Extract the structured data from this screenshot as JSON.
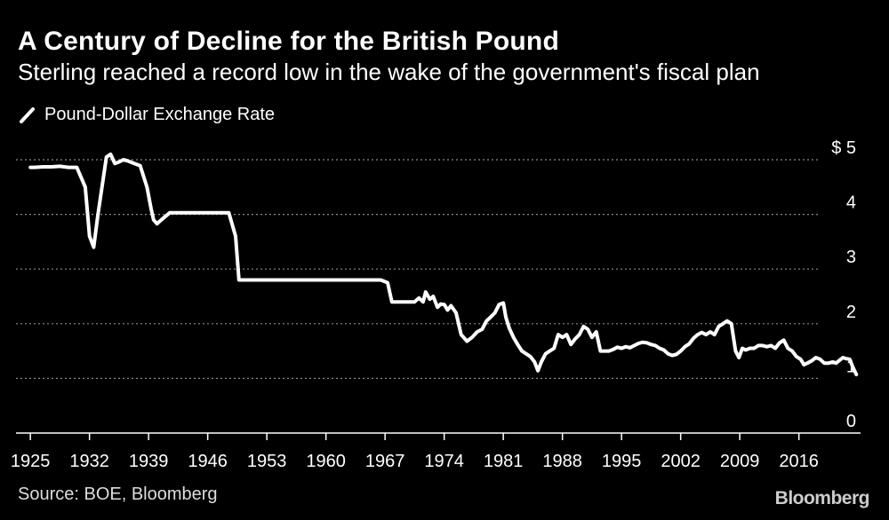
{
  "chart_data": {
    "type": "line",
    "title": "A Century of Decline for the British Pound",
    "subtitle": "Sterling reached a record low in the wake of the government's fiscal plan",
    "legend": [
      "Pound-Dollar Exchange Rate"
    ],
    "xlabel": "",
    "ylabel": "",
    "xlim": [
      1923.3,
      2023.3
    ],
    "ylim": [
      0,
      5
    ],
    "x_ticks": [
      1925,
      1932,
      1939,
      1946,
      1953,
      1960,
      1967,
      1974,
      1981,
      1988,
      1995,
      2002,
      2009,
      2016
    ],
    "y_ticks": [
      0,
      1,
      2,
      3,
      4,
      5
    ],
    "y_tick_labels": [
      "0",
      "1",
      "2",
      "3",
      "4",
      "$ 5"
    ],
    "grid": true,
    "series": [
      {
        "name": "Pound-Dollar Exchange Rate",
        "color": "#ffffff",
        "x": [
          1925.0,
          1925.5,
          1926.5,
          1927.5,
          1928.5,
          1929.5,
          1930.5,
          1931.5,
          1932.0,
          1932.5,
          1933.0,
          1934.0,
          1934.5,
          1935.0,
          1935.5,
          1936.0,
          1936.5,
          1937.0,
          1938.0,
          1938.8,
          1939.3,
          1939.6,
          1940.0,
          1940.5,
          1941.5,
          1942.5,
          1943.5,
          1944.5,
          1945.5,
          1946.5,
          1947.5,
          1948.5,
          1949.3,
          1949.7,
          1952.0,
          1955.0,
          1958.0,
          1961.0,
          1964.0,
          1966.5,
          1967.3,
          1967.8,
          1968.5,
          1969.5,
          1970.5,
          1971.0,
          1971.5,
          1971.8,
          1972.3,
          1972.7,
          1973.2,
          1973.6,
          1974.0,
          1974.4,
          1974.8,
          1975.4,
          1976.0,
          1976.7,
          1977.3,
          1977.9,
          1978.5,
          1979.0,
          1979.5,
          1980.0,
          1980.5,
          1981.0,
          1981.3,
          1981.7,
          1982.2,
          1982.7,
          1983.2,
          1983.7,
          1984.2,
          1984.7,
          1985.1,
          1985.5,
          1986.0,
          1986.5,
          1987.0,
          1987.5,
          1988.0,
          1988.5,
          1989.0,
          1989.5,
          1990.0,
          1990.5,
          1991.0,
          1991.5,
          1992.0,
          1992.5,
          1993.0,
          1993.5,
          1994.0,
          1994.5,
          1995.0,
          1995.5,
          1996.0,
          1996.5,
          1997.0,
          1997.5,
          1998.0,
          1998.5,
          1999.0,
          1999.5,
          2000.0,
          2000.5,
          2001.0,
          2001.5,
          2002.0,
          2002.5,
          2003.0,
          2003.5,
          2004.0,
          2004.5,
          2005.0,
          2005.5,
          2006.0,
          2006.5,
          2007.0,
          2007.5,
          2008.0,
          2008.5,
          2008.9,
          2009.3,
          2009.7,
          2010.2,
          2010.7,
          2011.2,
          2011.7,
          2012.2,
          2012.7,
          2013.2,
          2013.7,
          2014.2,
          2014.7,
          2015.2,
          2015.7,
          2016.2,
          2016.6,
          2017.0,
          2017.5,
          2018.0,
          2018.5,
          2019.0,
          2019.5,
          2020.0,
          2020.4,
          2020.8,
          2021.2,
          2021.6,
          2022.0,
          2022.4,
          2022.8
        ],
        "values": [
          4.86,
          4.86,
          4.87,
          4.87,
          4.88,
          4.86,
          4.86,
          4.5,
          3.6,
          3.4,
          4.0,
          5.05,
          5.1,
          4.93,
          4.96,
          5.0,
          4.98,
          4.95,
          4.89,
          4.5,
          4.1,
          3.9,
          3.83,
          3.9,
          4.03,
          4.03,
          4.03,
          4.03,
          4.03,
          4.03,
          4.03,
          4.03,
          3.6,
          2.8,
          2.8,
          2.8,
          2.8,
          2.8,
          2.8,
          2.8,
          2.75,
          2.4,
          2.4,
          2.4,
          2.4,
          2.47,
          2.4,
          2.58,
          2.45,
          2.5,
          2.3,
          2.36,
          2.35,
          2.25,
          2.33,
          2.2,
          1.8,
          1.68,
          1.75,
          1.85,
          1.9,
          2.05,
          2.12,
          2.2,
          2.35,
          2.38,
          2.12,
          1.92,
          1.75,
          1.62,
          1.5,
          1.45,
          1.4,
          1.3,
          1.14,
          1.3,
          1.45,
          1.5,
          1.55,
          1.8,
          1.75,
          1.8,
          1.62,
          1.72,
          1.8,
          1.95,
          1.9,
          1.75,
          1.85,
          1.5,
          1.5,
          1.5,
          1.53,
          1.57,
          1.55,
          1.58,
          1.56,
          1.6,
          1.64,
          1.66,
          1.65,
          1.62,
          1.6,
          1.55,
          1.52,
          1.45,
          1.42,
          1.44,
          1.5,
          1.58,
          1.63,
          1.73,
          1.8,
          1.84,
          1.8,
          1.85,
          1.8,
          1.95,
          2.0,
          2.05,
          2.0,
          1.5,
          1.38,
          1.55,
          1.52,
          1.55,
          1.55,
          1.6,
          1.6,
          1.58,
          1.6,
          1.55,
          1.65,
          1.7,
          1.55,
          1.5,
          1.4,
          1.35,
          1.25,
          1.28,
          1.32,
          1.38,
          1.35,
          1.28,
          1.28,
          1.3,
          1.28,
          1.33,
          1.38,
          1.36,
          1.35,
          1.2,
          1.07
        ]
      }
    ]
  },
  "source": "Source: BOE, Bloomberg",
  "brand": "Bloomberg",
  "colors": {
    "background": "#000000",
    "line": "#ffffff",
    "grid": "#8a8a8a",
    "axis": "#ffffff"
  }
}
